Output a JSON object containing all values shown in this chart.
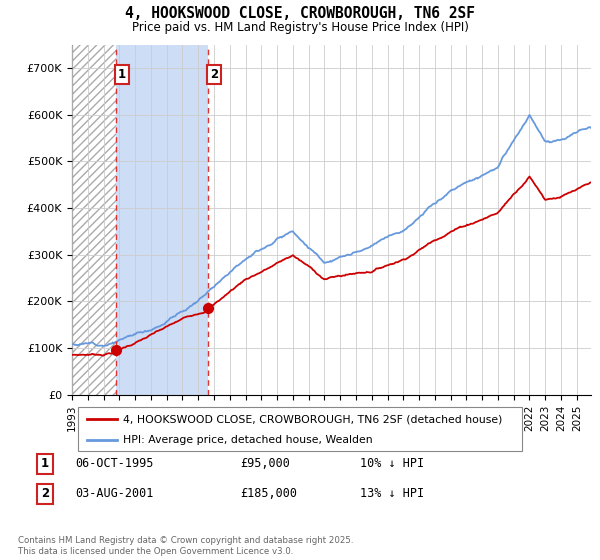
{
  "title": "4, HOOKSWOOD CLOSE, CROWBOROUGH, TN6 2SF",
  "subtitle": "Price paid vs. HM Land Registry's House Price Index (HPI)",
  "legend_line1": "4, HOOKSWOOD CLOSE, CROWBOROUGH, TN6 2SF (detached house)",
  "legend_line2": "HPI: Average price, detached house, Wealden",
  "transaction1_date": "06-OCT-1995",
  "transaction1_price": "£95,000",
  "transaction1_hpi": "10% ↓ HPI",
  "transaction2_date": "03-AUG-2001",
  "transaction2_price": "£185,000",
  "transaction2_hpi": "13% ↓ HPI",
  "footer": "Contains HM Land Registry data © Crown copyright and database right 2025.\nThis data is licensed under the Open Government Licence v3.0.",
  "house_color": "#cc0000",
  "hpi_color": "#6699dd",
  "marker1_x": 1995.76,
  "marker1_y": 95000,
  "marker2_x": 2001.59,
  "marker2_y": 185000,
  "ylim": [
    0,
    750000
  ],
  "xlim": [
    1993.0,
    2025.9
  ],
  "hatch_color": "#aaaaaa",
  "span2_color": "#ccddf5"
}
